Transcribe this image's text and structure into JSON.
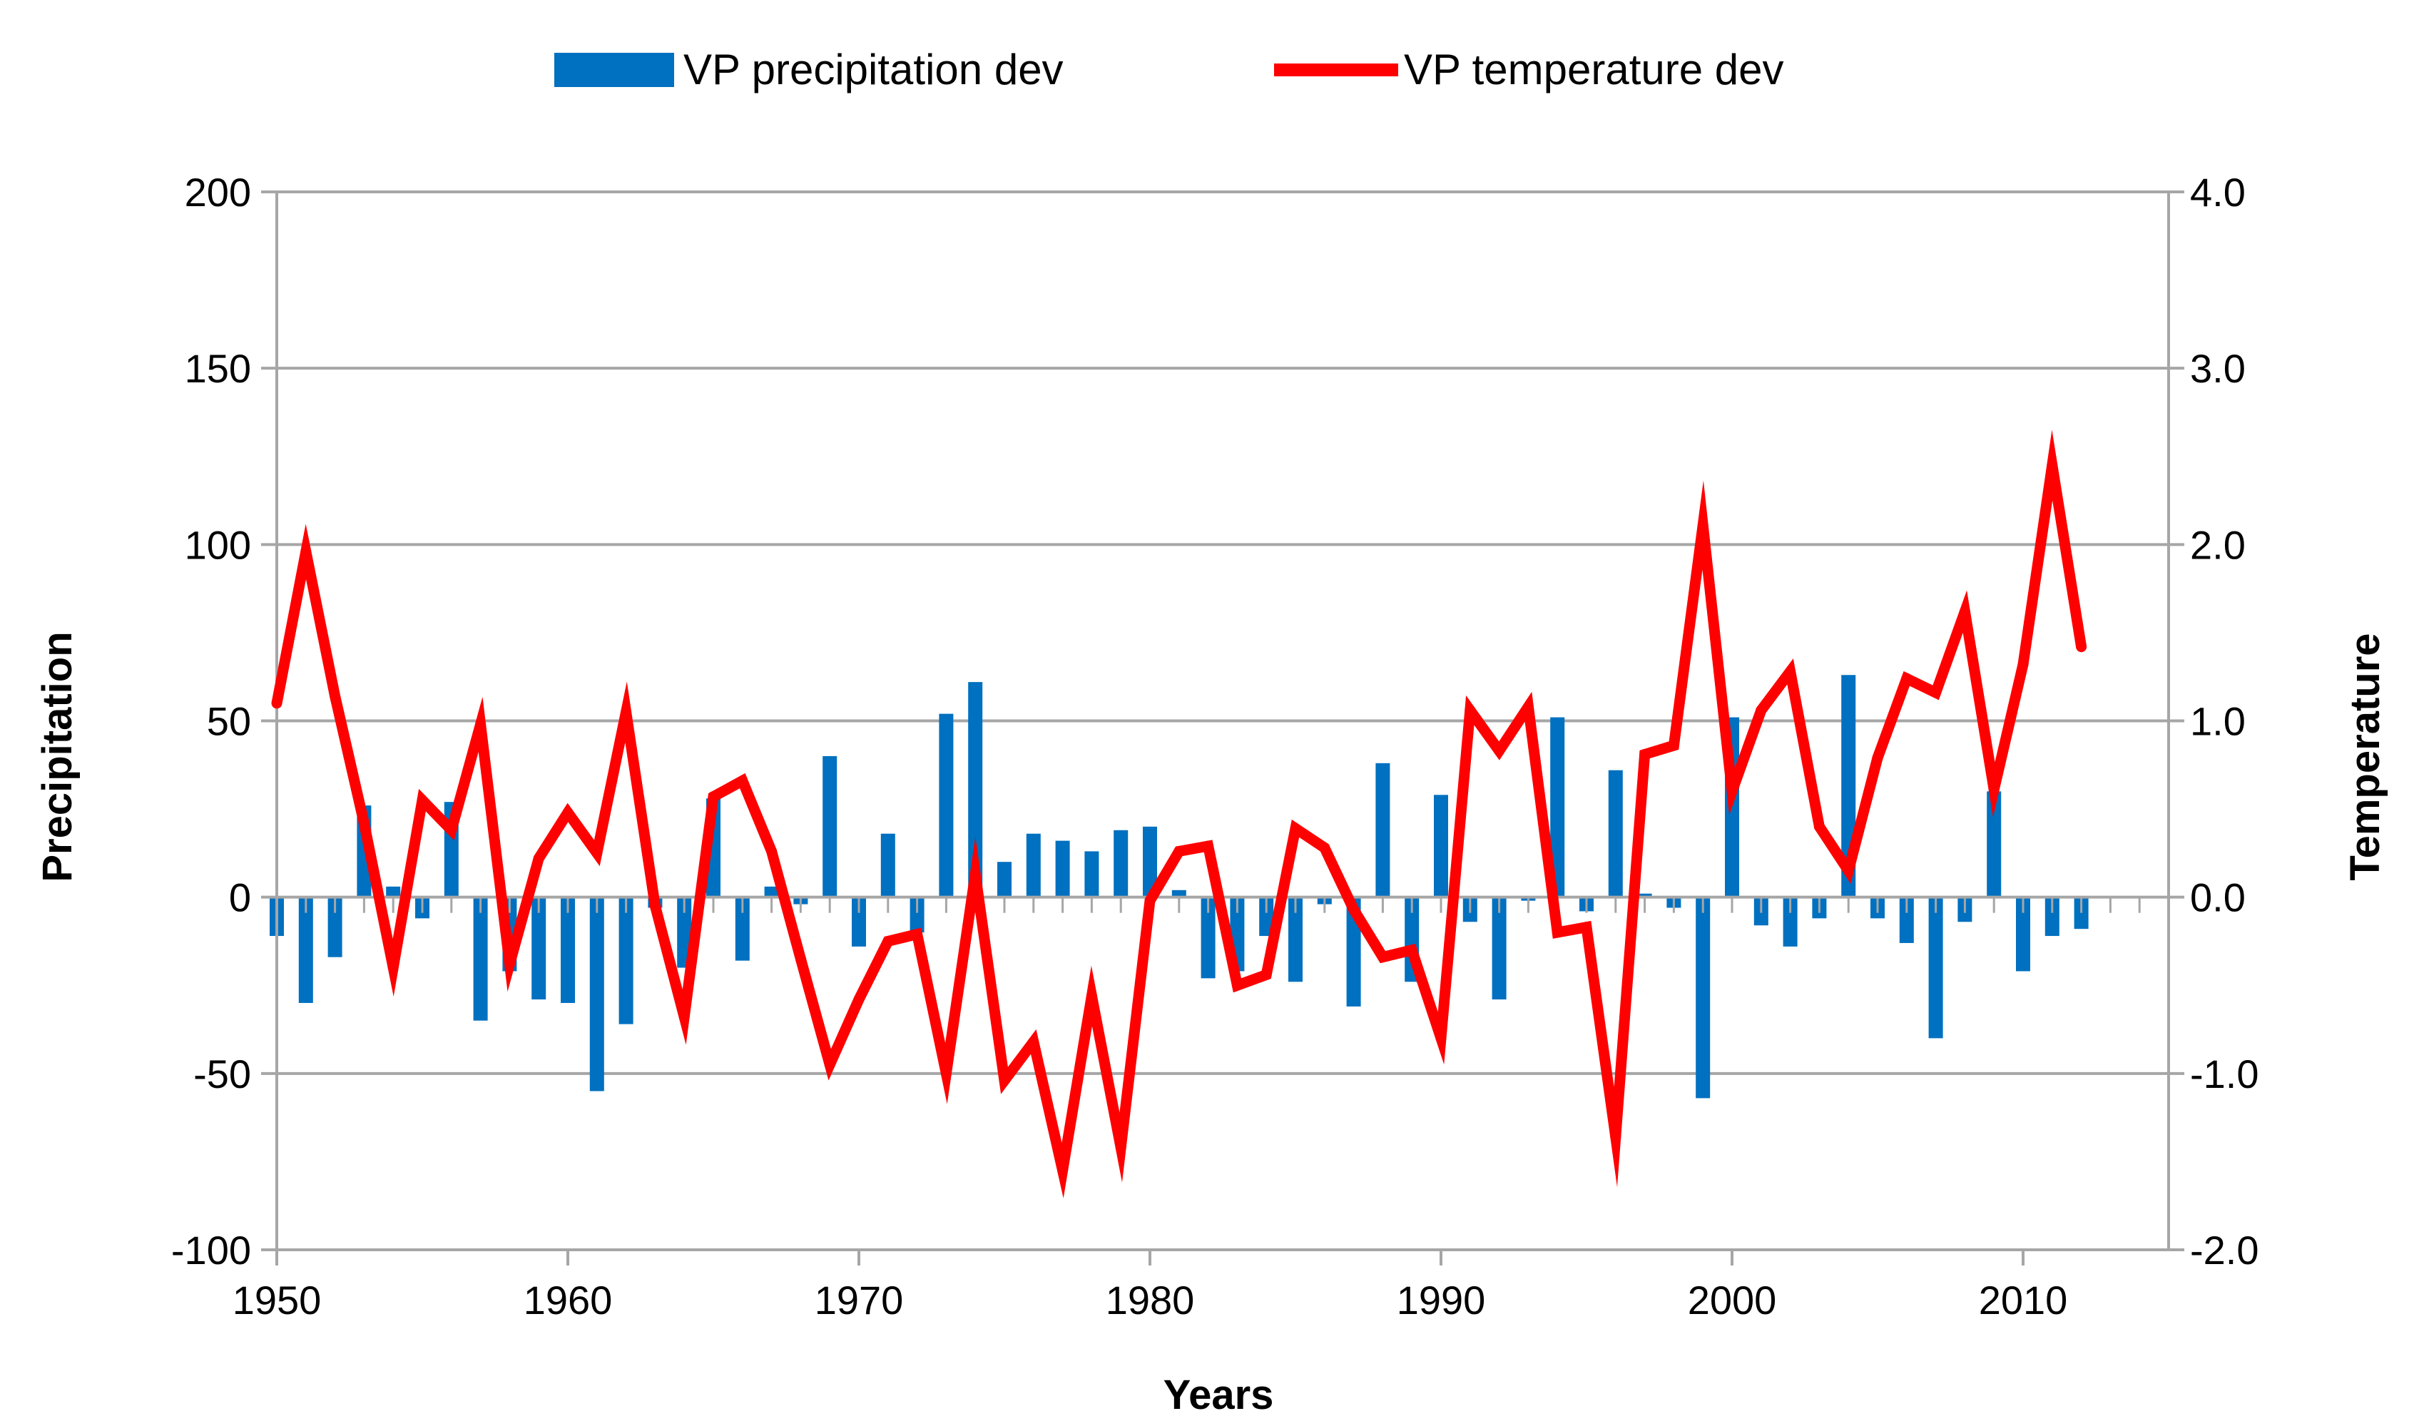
{
  "chart_data": {
    "type": "bar+line",
    "xlabel": "Years",
    "ylabel_left": "Precipitation",
    "ylabel_right": "Temperature",
    "xlim": [
      1950,
      2015
    ],
    "xticks": [
      1950,
      1960,
      1970,
      1980,
      1990,
      2000,
      2010
    ],
    "xtick_labels": [
      "1950",
      "1960",
      "1970",
      "1980",
      "1990",
      "2000",
      "2010"
    ],
    "ylim_left": [
      -100,
      200
    ],
    "yticks_left": [
      -100,
      -50,
      0,
      50,
      100,
      150,
      200
    ],
    "ytick_labels_left": [
      "-100",
      "-50",
      "0",
      "50",
      "100",
      "150",
      "200"
    ],
    "ylim_right": [
      -2.0,
      4.0
    ],
    "yticks_right": [
      -2.0,
      -1.0,
      0.0,
      1.0,
      2.0,
      3.0,
      4.0
    ],
    "ytick_labels_right": [
      "-2.0",
      "-1.0",
      "0.0",
      "1.0",
      "2.0",
      "3.0",
      "4.0"
    ],
    "grid": true,
    "legend_position": "top-center",
    "years": [
      1950,
      1951,
      1952,
      1953,
      1954,
      1955,
      1956,
      1957,
      1958,
      1959,
      1960,
      1961,
      1962,
      1963,
      1964,
      1965,
      1966,
      1967,
      1968,
      1969,
      1970,
      1971,
      1972,
      1973,
      1974,
      1975,
      1976,
      1977,
      1978,
      1979,
      1980,
      1981,
      1982,
      1983,
      1984,
      1985,
      1986,
      1987,
      1988,
      1989,
      1990,
      1991,
      1992,
      1993,
      1994,
      1995,
      1996,
      1997,
      1998,
      1999,
      2000,
      2001,
      2002,
      2003,
      2004,
      2005,
      2006,
      2007,
      2008,
      2009,
      2010,
      2011,
      2012
    ],
    "series": [
      {
        "name": "VP precipitation dev",
        "type": "bar",
        "axis": "left",
        "color": "#0070C0",
        "values": [
          -11,
          -30,
          -17,
          26,
          3,
          -6,
          27,
          -35,
          -21,
          -29,
          -30,
          -55,
          -36,
          -3,
          -20,
          28,
          -18,
          3,
          -2,
          40,
          -14,
          18,
          -10,
          52,
          61,
          10,
          18,
          16,
          13,
          19,
          20,
          2,
          -23,
          -21,
          -11,
          -24,
          -2,
          -31,
          38,
          -24,
          29,
          -7,
          -29,
          -1,
          51,
          -4,
          36,
          1,
          -3,
          -57,
          51,
          -8,
          -14,
          -6,
          63,
          -6,
          -13,
          -40,
          -7,
          30,
          -21,
          -11,
          -9
        ]
      },
      {
        "name": "VP temperature dev",
        "type": "line",
        "axis": "right",
        "color": "#FF0000",
        "values": [
          1.1,
          1.96,
          1.14,
          0.42,
          -0.4,
          0.55,
          0.38,
          0.98,
          -0.38,
          0.22,
          0.48,
          0.25,
          1.05,
          -0.05,
          -0.68,
          0.57,
          0.66,
          0.26,
          -0.35,
          -0.95,
          -0.58,
          -0.25,
          -0.21,
          -1.0,
          0.13,
          -1.04,
          -0.82,
          -1.55,
          -0.56,
          -1.42,
          -0.02,
          0.26,
          0.29,
          -0.5,
          -0.44,
          0.39,
          0.28,
          -0.07,
          -0.34,
          -0.3,
          -0.8,
          1.06,
          0.83,
          1.08,
          -0.2,
          -0.17,
          -1.36,
          0.81,
          0.86,
          2.11,
          0.6,
          1.06,
          1.28,
          0.4,
          0.15,
          0.79,
          1.24,
          1.16,
          1.62,
          0.61,
          1.32,
          2.45,
          1.42
        ]
      }
    ]
  }
}
